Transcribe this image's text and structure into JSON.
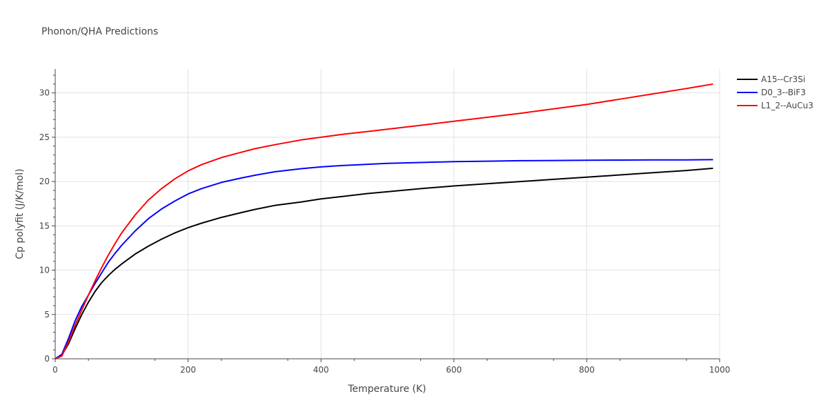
{
  "chart_data": {
    "type": "line",
    "title": "Phonon/QHA Predictions",
    "xlabel": "Temperature (K)",
    "ylabel": "Cp polyfit (J/K/mol)",
    "xlim": [
      0,
      1000
    ],
    "ylim": [
      0,
      32.7
    ],
    "x_ticks": [
      "0",
      "200",
      "400",
      "600",
      "800",
      "1000"
    ],
    "y_ticks": [
      "0",
      "5",
      "10",
      "15",
      "20",
      "25",
      "30"
    ],
    "grid": true,
    "legend_position": "top-right",
    "series": [
      {
        "name": "A15--Cr3Si",
        "color": "#000000",
        "x": [
          0,
          10,
          20,
          30,
          40,
          50,
          60,
          70,
          80,
          90,
          100,
          120,
          140,
          160,
          180,
          200,
          220,
          250,
          280,
          300,
          330,
          370,
          400,
          430,
          470,
          500,
          550,
          600,
          650,
          700,
          750,
          800,
          850,
          900,
          950,
          990
        ],
        "y": [
          0,
          0.4,
          1.7,
          3.4,
          5.0,
          6.4,
          7.6,
          8.6,
          9.4,
          10.1,
          10.7,
          11.8,
          12.7,
          13.5,
          14.2,
          14.8,
          15.3,
          15.95,
          16.5,
          16.85,
          17.3,
          17.7,
          18.05,
          18.3,
          18.65,
          18.85,
          19.2,
          19.5,
          19.75,
          20.0,
          20.25,
          20.5,
          20.75,
          21.0,
          21.25,
          21.5
        ]
      },
      {
        "name": "D0_3--BiF3",
        "color": "#0000ff",
        "x": [
          0,
          10,
          20,
          30,
          40,
          50,
          60,
          70,
          80,
          90,
          100,
          120,
          140,
          160,
          180,
          200,
          220,
          250,
          280,
          300,
          330,
          370,
          400,
          430,
          470,
          500,
          550,
          600,
          650,
          700,
          750,
          800,
          850,
          900,
          950,
          990
        ],
        "y": [
          0,
          0.5,
          2.3,
          4.3,
          5.9,
          7.2,
          8.5,
          9.7,
          10.9,
          11.9,
          12.8,
          14.4,
          15.8,
          16.9,
          17.8,
          18.6,
          19.2,
          19.9,
          20.4,
          20.7,
          21.1,
          21.45,
          21.65,
          21.8,
          21.95,
          22.05,
          22.15,
          22.25,
          22.3,
          22.35,
          22.38,
          22.4,
          22.42,
          22.44,
          22.45,
          22.47
        ]
      },
      {
        "name": "L1_2--AuCu3",
        "color": "#ff0000",
        "x": [
          0,
          10,
          20,
          30,
          40,
          50,
          60,
          70,
          80,
          90,
          100,
          120,
          140,
          160,
          180,
          200,
          220,
          250,
          280,
          300,
          330,
          370,
          400,
          430,
          470,
          500,
          550,
          600,
          650,
          700,
          750,
          800,
          850,
          900,
          950,
          990
        ],
        "y": [
          0,
          0.3,
          1.9,
          3.8,
          5.5,
          7.2,
          8.8,
          10.3,
          11.7,
          13.0,
          14.2,
          16.2,
          17.9,
          19.2,
          20.3,
          21.2,
          21.9,
          22.7,
          23.3,
          23.7,
          24.15,
          24.7,
          25.0,
          25.3,
          25.65,
          25.9,
          26.35,
          26.8,
          27.25,
          27.7,
          28.2,
          28.7,
          29.3,
          29.9,
          30.5,
          31.0
        ]
      }
    ]
  }
}
